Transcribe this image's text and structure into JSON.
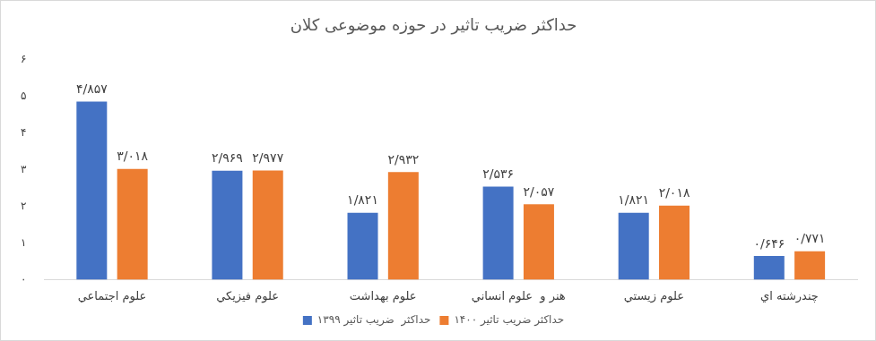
{
  "chart_data": {
    "type": "bar",
    "title": "حداکثر ضریب تاثیر در حوزه موضوعی کلان",
    "categories": [
      "علوم اجتماعي",
      "علوم فيزيكي",
      "علوم بهداشت",
      "هنر و  علوم انساني",
      "علوم زيستي",
      "چندرشته اي"
    ],
    "series": [
      {
        "name": "حداکثر  ضریب تاثیر ۱۳۹۹",
        "color": "#4472c4",
        "values": [
          4.857,
          2.969,
          1.821,
          2.536,
          1.821,
          0.646
        ],
        "value_labels": [
          "۴/۸۵۷",
          "۲/۹۶۹",
          "۱/۸۲۱",
          "۲/۵۳۶",
          "۱/۸۲۱",
          "۰/۶۴۶"
        ]
      },
      {
        "name": "حداکثر ضریب تاثیر ۱۴۰۰",
        "color": "#ed7d31",
        "values": [
          3.018,
          2.977,
          2.932,
          2.057,
          2.018,
          0.771
        ],
        "value_labels": [
          "۳/۰۱۸",
          "۲/۹۷۷",
          "۲/۹۳۲",
          "۲/۰۵۷",
          "۲/۰۱۸",
          "۰/۷۷۱"
        ]
      }
    ],
    "ylim": [
      0,
      6
    ],
    "yticks": [
      {
        "value": 0,
        "label": "۰"
      },
      {
        "value": 1,
        "label": "۱"
      },
      {
        "value": 2,
        "label": "۲"
      },
      {
        "value": 3,
        "label": "۳"
      },
      {
        "value": 4,
        "label": "۴"
      },
      {
        "value": 5,
        "label": "۵"
      },
      {
        "value": 6,
        "label": "۶"
      }
    ],
    "grid": false,
    "legend": "bottom",
    "data_labels": true
  }
}
